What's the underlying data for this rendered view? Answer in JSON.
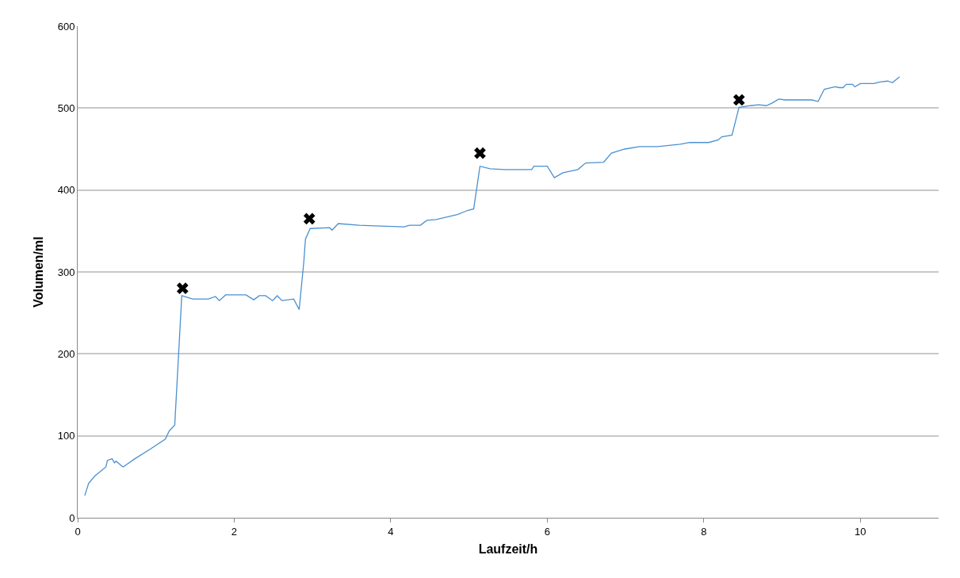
{
  "chart_data": {
    "type": "line",
    "xlabel": "Laufzeit/h",
    "ylabel": "Volumen/ml",
    "xlim": [
      0,
      11
    ],
    "xticks": [
      0,
      2,
      4,
      6,
      8,
      10
    ],
    "ylim": [
      0,
      600
    ],
    "yticks": [
      0,
      100,
      200,
      300,
      400,
      500,
      600
    ],
    "grid": "y",
    "series": [
      {
        "color": "#4a90d0",
        "marker": "none",
        "x": [
          0.09,
          0.14,
          0.22,
          0.36,
          0.38,
          0.44,
          0.47,
          0.49,
          0.58,
          0.73,
          0.93,
          1.12,
          1.17,
          1.24,
          1.33,
          1.47,
          1.67,
          1.76,
          1.81,
          1.89,
          2.15,
          2.25,
          2.32,
          2.4,
          2.49,
          2.55,
          2.61,
          2.76,
          2.83,
          2.89,
          2.91,
          2.97,
          3.22,
          3.25,
          3.33,
          3.6,
          3.87,
          4.17,
          4.24,
          4.38,
          4.46,
          4.58,
          4.85,
          4.98,
          5.06,
          5.14,
          5.27,
          5.46,
          5.8,
          5.83,
          6.0,
          6.09,
          6.2,
          6.39,
          6.49,
          6.72,
          6.82,
          6.99,
          7.18,
          7.41,
          7.7,
          7.82,
          8.06,
          8.18,
          8.23,
          8.36,
          8.45,
          8.6,
          8.7,
          8.8,
          8.87,
          8.96,
          9.04,
          9.38,
          9.46,
          9.54,
          9.68,
          9.73,
          9.78,
          9.82,
          9.9,
          9.93,
          10.0,
          10.17,
          10.25,
          10.35,
          10.41,
          10.5
        ],
        "values": [
          27,
          42,
          51,
          62,
          70,
          72,
          67,
          69,
          62,
          72,
          84,
          96,
          106,
          113,
          271,
          267,
          267,
          270,
          265,
          272,
          272,
          266,
          271,
          271,
          265,
          271,
          265,
          267,
          254,
          313,
          340,
          353,
          354,
          351,
          359,
          357,
          356,
          355,
          357,
          357,
          363,
          364,
          370,
          375,
          377,
          429,
          426,
          425,
          425,
          429,
          429,
          415,
          421,
          425,
          433,
          434,
          445,
          450,
          453,
          453,
          456,
          458,
          458,
          461,
          465,
          467,
          501,
          503,
          504,
          503,
          506,
          511,
          510,
          510,
          508,
          523,
          526,
          525,
          525,
          529,
          529,
          526,
          530,
          530,
          532,
          533,
          531,
          538
        ]
      },
      {
        "type": "scatter",
        "color": "#000000",
        "marker": "cross",
        "x": [
          1.34,
          2.96,
          5.14,
          8.45
        ],
        "values": [
          280,
          365,
          445,
          510
        ]
      }
    ]
  }
}
